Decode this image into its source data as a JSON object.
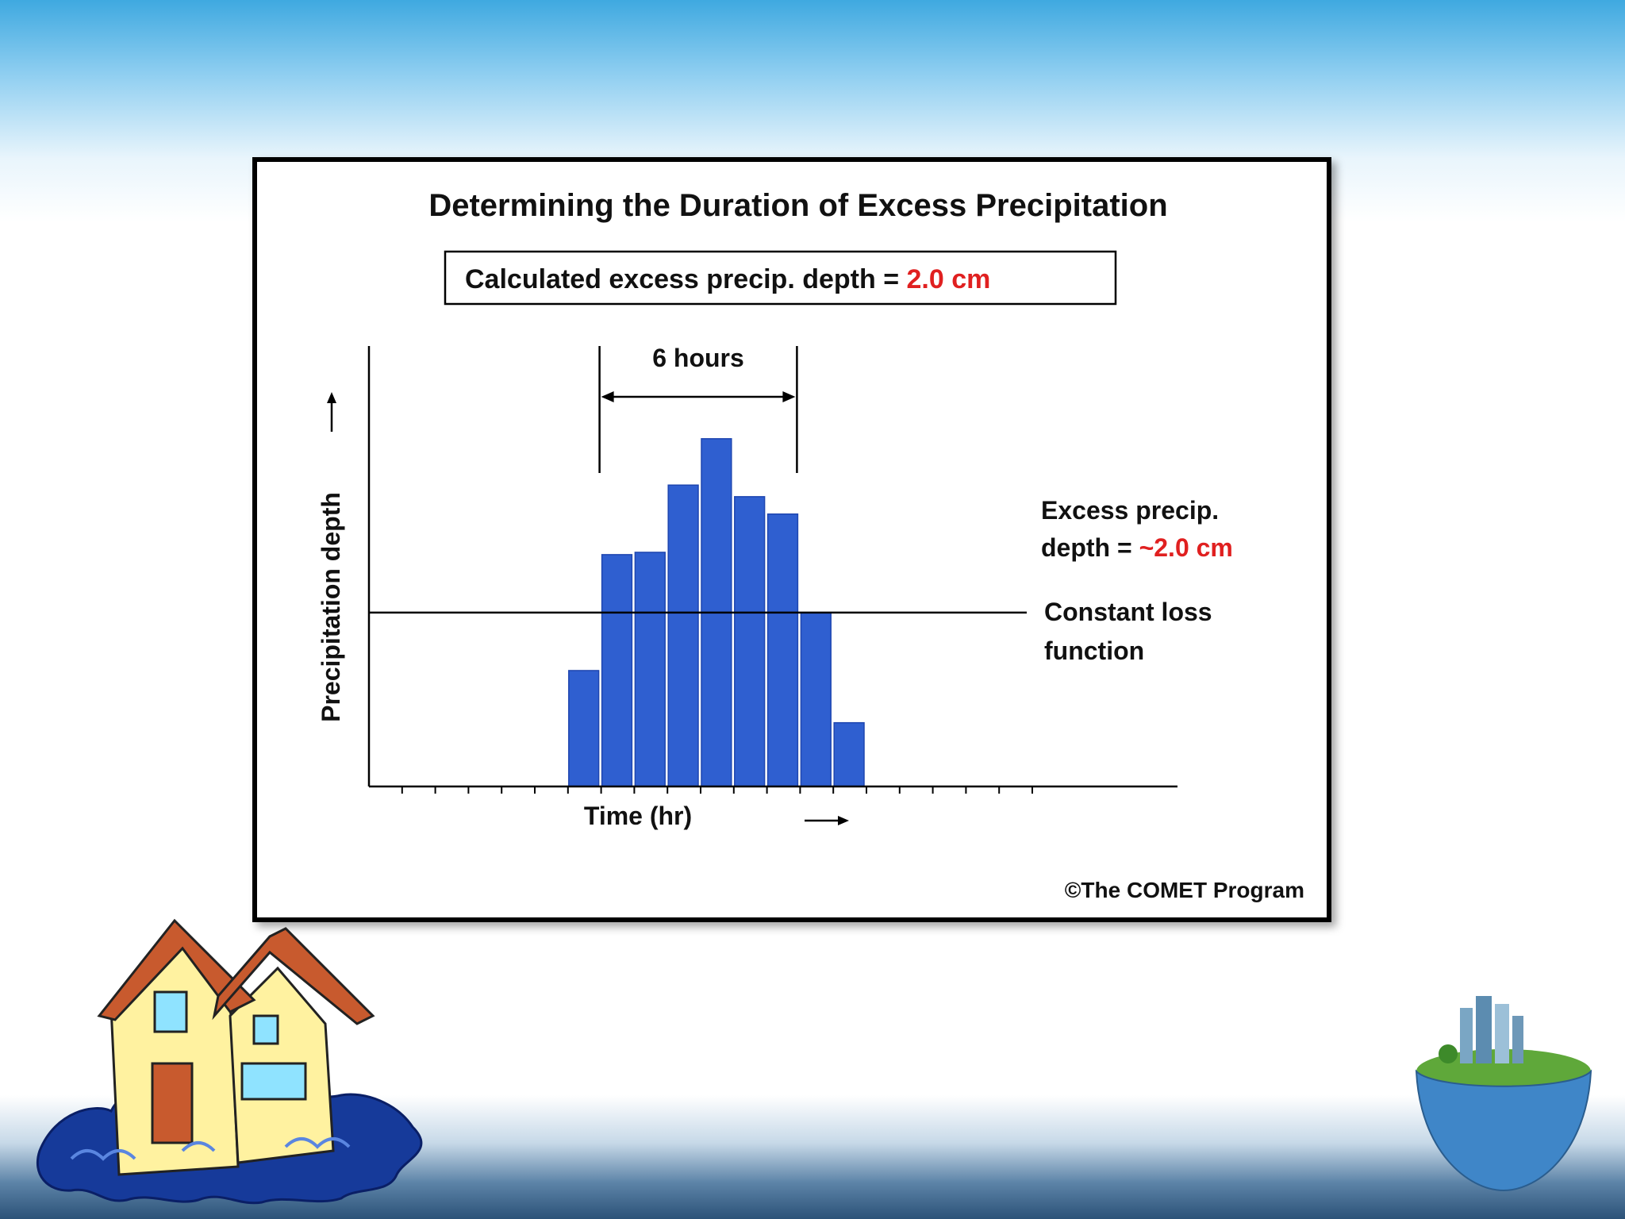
{
  "colors": {
    "bar": "#2f5fd0",
    "bar_edge": "#1f46b0",
    "highlight": "#e02020",
    "text": "#111111"
  },
  "chart_data": {
    "type": "bar",
    "title": "Determining the Duration of Excess Precipitation",
    "summary_box": {
      "label": "Calculated excess precip. depth = ",
      "value": "2.0 cm"
    },
    "xlabel": "Time (hr)",
    "ylabel": "Precipitation depth",
    "values": [
      0,
      0,
      0,
      0,
      0,
      0,
      1.0,
      2.0,
      2.02,
      2.6,
      3.0,
      2.5,
      2.35,
      1.5,
      0.55,
      0,
      0,
      0,
      0,
      0
    ],
    "ylim": [
      0,
      3.8
    ],
    "loss_function_level": 1.5,
    "duration_label": "6 hours",
    "duration_span": [
      7,
      13
    ],
    "annotations": {
      "excess_line1": "Excess precip.",
      "excess_prefix": "depth = ",
      "excess_value": "~2.0 cm",
      "loss_line1": "Constant loss",
      "loss_line2": "function"
    },
    "credit": "©The COMET Program"
  }
}
